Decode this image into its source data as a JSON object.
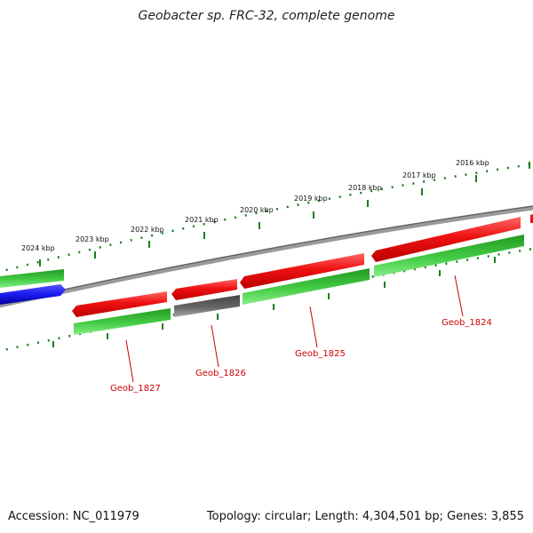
{
  "title": "Geobacter sp. FRC-32, complete genome",
  "accession": "Accession: NC_011979",
  "topology": "Topology: circular; Length: 4,304,501 bp; Genes: 3,855",
  "colors": {
    "forward_red": "#ee1111",
    "forward_green": "#33bb33",
    "blue": "#1a1af0",
    "grey_gene": "#666666",
    "backbone": "#888888",
    "scale_green": "#1a7f1a",
    "label_red": "#cc0000"
  },
  "kbp_labels": [
    "2024 kbp",
    "2023 kbp",
    "2022 kbp",
    "2021 kbp",
    "2020 kbp",
    "2019 kbp",
    "2018 kbp",
    "2017 kbp",
    "2016 kbp"
  ],
  "gene_labels": [
    "Geob_1827",
    "Geob_1826",
    "Geob_1825",
    "Geob_1824"
  ]
}
